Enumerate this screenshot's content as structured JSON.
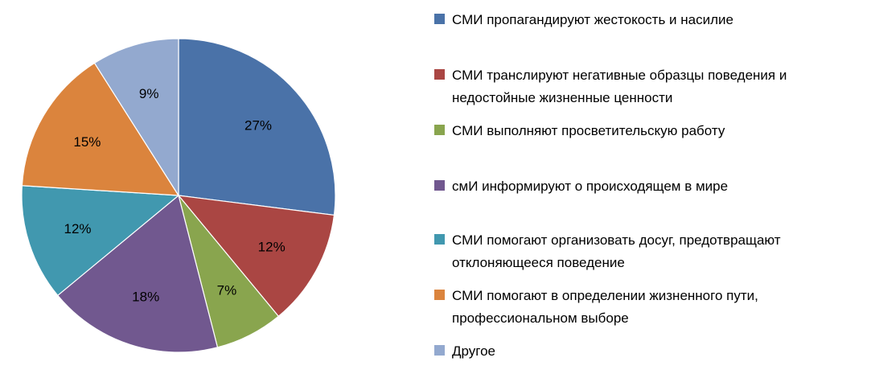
{
  "chart_data": {
    "type": "pie",
    "title": "",
    "legend_position": "right",
    "slices": [
      {
        "label_lines": [
          "СМИ пропагандируют жестокость и насилие"
        ],
        "value": 27,
        "value_label": "27%",
        "color": "#4A72A8"
      },
      {
        "label_lines": [
          "СМИ транслируют негативные образцы поведения и",
          "недостойные жизненные ценности"
        ],
        "value": 12,
        "value_label": "12%",
        "color": "#AA4643"
      },
      {
        "label_lines": [
          "СМИ выполняют просветительскую работу"
        ],
        "value": 7,
        "value_label": "7%",
        "color": "#89A54E"
      },
      {
        "label_lines": [
          "смИ информируют о происходящем в мире"
        ],
        "value": 18,
        "value_label": "18%",
        "color": "#71588F"
      },
      {
        "label_lines": [
          "СМИ помогают организовать досуг, предотвращают",
          "отклоняющееся поведение"
        ],
        "value": 12,
        "value_label": "12%",
        "color": "#4198AF"
      },
      {
        "label_lines": [
          "СМИ помогают в определении жизненного пути,",
          "профессиональном выборе"
        ],
        "value": 15,
        "value_label": "15%",
        "color": "#DB843D"
      },
      {
        "label_lines": [
          "Другое"
        ],
        "value": 9,
        "value_label": "9%",
        "color": "#93A9CF"
      }
    ]
  }
}
